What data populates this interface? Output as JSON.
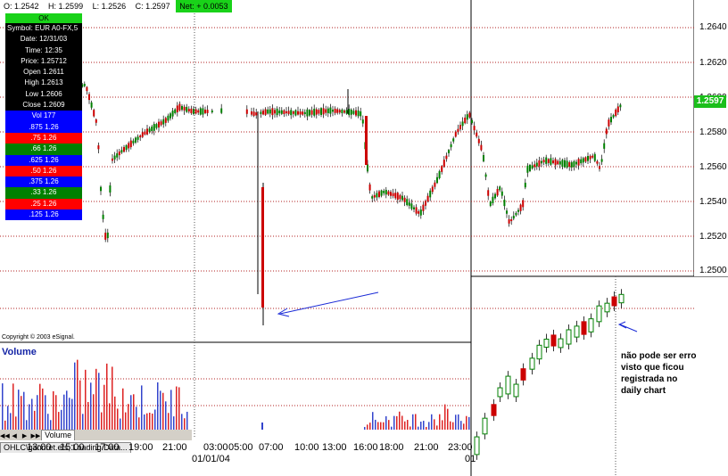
{
  "topbar": {
    "open": "O: 1.2542",
    "high": "H: 1.2599",
    "low": "L: 1.2526",
    "close": "C: 1.2597",
    "net": "Net: + 0.0053"
  },
  "info_panel": {
    "ok_label": "OK",
    "symbol": "Symbol: EUR A0-FX,5",
    "date": "Date: 12/31/03",
    "time": "Time: 12:35",
    "price": "Price: 1.25712",
    "open": "Open 1.2611",
    "high": "High 1.2613",
    "low": "Low 1.2606",
    "close": "Close 1.2609",
    "gann_rows": [
      {
        "label": "Vol 177",
        "color": "#0000ff"
      },
      {
        "label": ".875 1.26",
        "color": "#0000ff"
      },
      {
        "label": ".75 1.26",
        "color": "#ff0000"
      },
      {
        "label": ".66 1.26",
        "color": "#008000"
      },
      {
        "label": ".625 1.26",
        "color": "#0000ff"
      },
      {
        "label": ".50 1.26",
        "color": "#ff0000"
      },
      {
        "label": ".375 1.26",
        "color": "#0000ff"
      },
      {
        "label": ".33 1.26",
        "color": "#008000"
      },
      {
        "label": ".25 1.26",
        "color": "#ff0000"
      },
      {
        "label": ".125 1.26",
        "color": "#0000ff"
      }
    ]
  },
  "price_axis": {
    "labels": [
      "1.2640",
      "1.2620",
      "1.2600",
      "1.2580",
      "1.2560",
      "1.2540",
      "1.2520",
      "1.2500"
    ],
    "last_price": "1.2597",
    "last_price_color": "#1bbf1b"
  },
  "copyright": "Copyright © 2003 eSignal.",
  "volume_title": "Volume",
  "tabs": {
    "volume": "Volume",
    "study": "OHLC\\gannret.efs, Loading Data..."
  },
  "time_axis": {
    "labels": [
      "13:00",
      "15:00",
      "17:00",
      "19:00",
      "21:00",
      "03:00",
      "05:00",
      "07:00",
      "10:00",
      "13:00",
      "16:00",
      "18:00",
      "21:00",
      "23:00"
    ],
    "date_label": "01/01/04",
    "daily_label": "01"
  },
  "comment_lines": [
    "não pode ser erro",
    "visto que ficou",
    "registrada no",
    "daily chart"
  ],
  "colors": {
    "up": "#008000",
    "down": "#cc0000",
    "grid": "#b22222",
    "volume_up": "#3344cc",
    "volume_down": "#dd2222",
    "arrow": "#1a2ad6"
  }
}
